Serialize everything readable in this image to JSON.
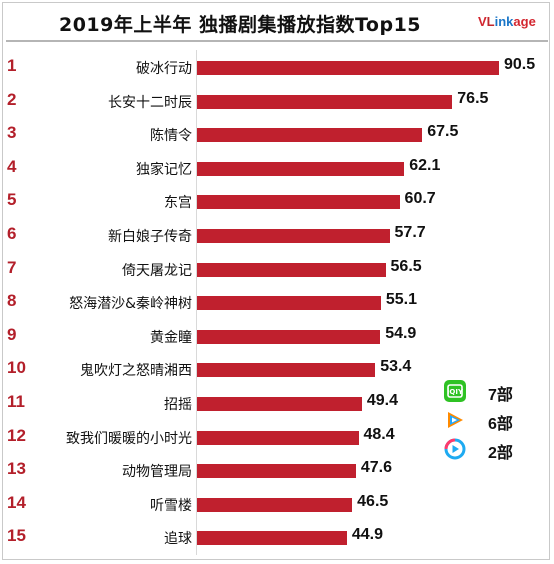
{
  "header": {
    "title": "2019年上半年 独播剧集播放指数Top15",
    "logo_v": "V",
    "logo_l": "L",
    "logo_ink": "ink",
    "logo_age": "age"
  },
  "chart_data": {
    "type": "bar",
    "orientation": "horizontal",
    "title": "2019年上半年 独播剧集播放指数Top15",
    "ranks": [
      "1",
      "2",
      "3",
      "4",
      "5",
      "6",
      "7",
      "8",
      "9",
      "10",
      "11",
      "12",
      "13",
      "14",
      "15"
    ],
    "categories": [
      "破冰行动",
      "长安十二时辰",
      "陈情令",
      "独家记忆",
      "东宫",
      "新白娘子传奇",
      "倚天屠龙记",
      "怒海潜沙&秦岭神树",
      "黄金瞳",
      "鬼吹灯之怒晴湘西",
      "招摇",
      "致我们暖暖的小时光",
      "动物管理局",
      "听雪楼",
      "追球"
    ],
    "values": [
      90.5,
      76.5,
      67.5,
      62.1,
      60.7,
      57.7,
      56.5,
      55.1,
      54.9,
      53.4,
      49.4,
      48.4,
      47.6,
      46.5,
      44.9
    ],
    "value_labels": [
      "90.5",
      "76.5",
      "67.5",
      "62.1",
      "60.7",
      "57.7",
      "56.5",
      "55.1",
      "54.9",
      "53.4",
      "49.4",
      "48.4",
      "47.6",
      "46.5",
      "44.9"
    ],
    "bar_color": "#c0202e",
    "xlim": [
      0,
      100
    ]
  },
  "legend": {
    "items": [
      {
        "icon": "iqiyi-icon",
        "color": "#2fc224",
        "label": "7部"
      },
      {
        "icon": "tencent-video-icon",
        "color": "#ffffff",
        "label": "6部"
      },
      {
        "icon": "youku-icon",
        "color": "#ffffff",
        "label": "2部"
      }
    ]
  }
}
